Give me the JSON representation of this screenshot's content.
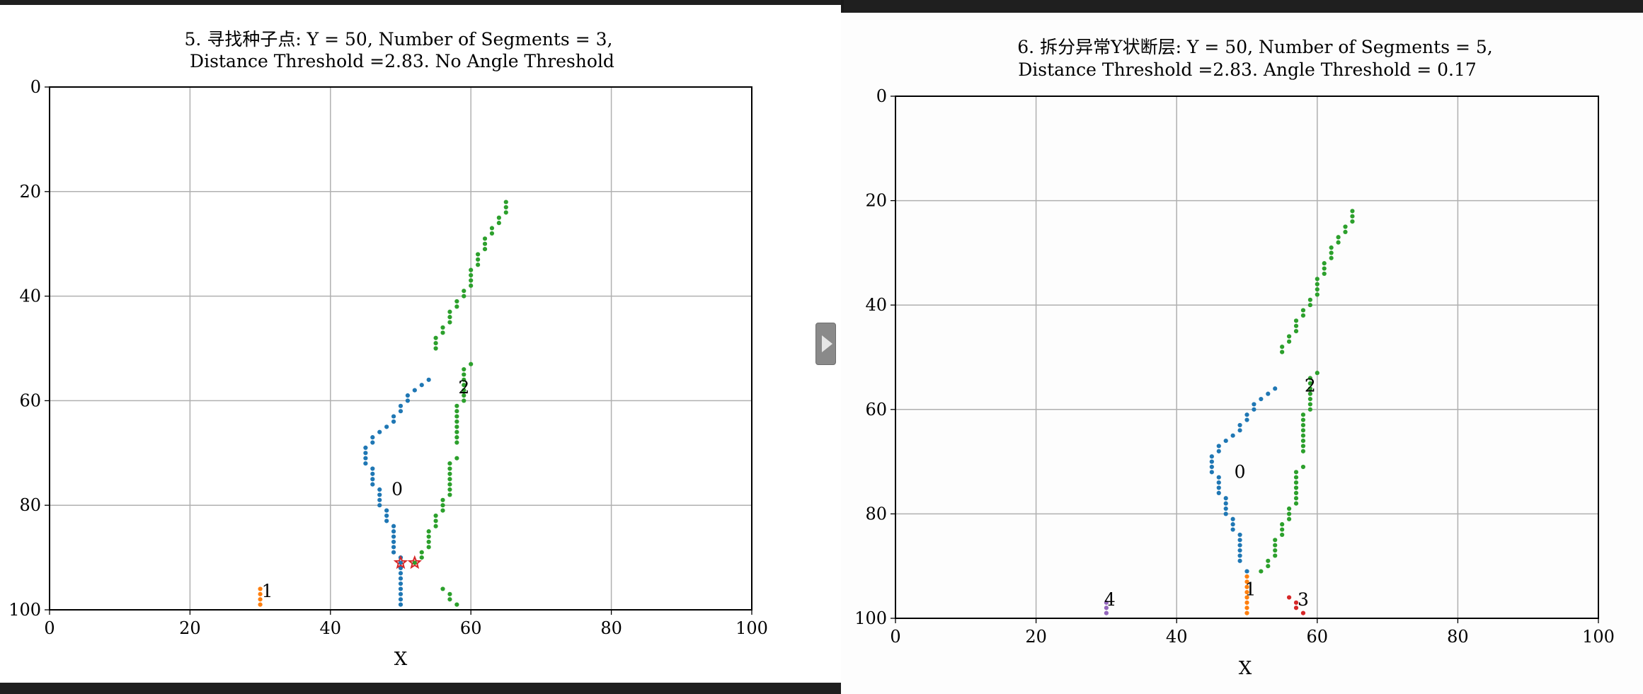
{
  "splitter": {
    "icon": "play-arrow-icon"
  },
  "colors": {
    "seg0": "#1f77b4",
    "seg1": "#ff7f0e",
    "seg2": "#2ca02c",
    "seg3": "#d62728",
    "seg4": "#9467bd",
    "seed": "#d62728",
    "grid": "#b0b0b0"
  },
  "chart_data": [
    {
      "type": "scatter",
      "title_line1": "5. 寻找种子点: Y = 50, Number of Segments = 3,",
      "title_line2": "Distance Threshold =2.83. No Angle Threshold",
      "xlabel": "X",
      "ylabel": "",
      "xlim": [
        0,
        100
      ],
      "ylim": [
        100,
        0
      ],
      "y_inverted": true,
      "grid": true,
      "xticks": [
        "0",
        "20",
        "40",
        "60",
        "80",
        "100"
      ],
      "yticks": [
        "0",
        "20",
        "40",
        "60",
        "80",
        "100"
      ],
      "segment_labels": [
        {
          "text": "0",
          "x": 49.5,
          "y": 77
        },
        {
          "text": "1",
          "x": 31,
          "y": 96.5
        },
        {
          "text": "2",
          "x": 59,
          "y": 57.5
        }
      ],
      "seed_points": [
        [
          50,
          91
        ],
        [
          52,
          91
        ]
      ],
      "series": [
        {
          "color_key": "seg0",
          "points": [
            [
              54,
              56
            ],
            [
              53,
              57
            ],
            [
              52,
              58
            ],
            [
              51,
              59
            ],
            [
              51,
              60
            ],
            [
              50,
              61
            ],
            [
              50,
              62
            ],
            [
              49,
              63
            ],
            [
              49,
              64
            ],
            [
              48,
              65
            ],
            [
              47,
              66
            ],
            [
              46,
              67
            ],
            [
              46,
              68
            ],
            [
              45,
              69
            ],
            [
              45,
              70
            ],
            [
              45,
              71
            ],
            [
              45,
              72
            ],
            [
              46,
              73
            ],
            [
              46,
              74
            ],
            [
              46,
              75
            ],
            [
              46,
              76
            ],
            [
              47,
              77
            ],
            [
              47,
              78
            ],
            [
              47,
              79
            ],
            [
              47,
              80
            ],
            [
              48,
              81
            ],
            [
              48,
              82
            ],
            [
              48,
              83
            ],
            [
              49,
              84
            ],
            [
              49,
              85
            ],
            [
              49,
              86
            ],
            [
              49,
              87
            ],
            [
              49,
              88
            ],
            [
              49,
              89
            ],
            [
              50,
              90
            ],
            [
              50,
              91
            ],
            [
              50,
              92
            ],
            [
              50,
              93
            ],
            [
              50,
              94
            ],
            [
              50,
              95
            ],
            [
              50,
              96
            ],
            [
              50,
              97
            ],
            [
              50,
              98
            ],
            [
              50,
              99
            ]
          ]
        },
        {
          "color_key": "seg1",
          "points": [
            [
              30,
              96
            ],
            [
              30,
              97
            ],
            [
              30,
              98
            ],
            [
              30,
              99
            ]
          ]
        },
        {
          "color_key": "seg2",
          "points": [
            [
              65,
              22
            ],
            [
              65,
              23
            ],
            [
              65,
              24
            ],
            [
              64,
              25
            ],
            [
              64,
              26
            ],
            [
              63,
              27
            ],
            [
              63,
              28
            ],
            [
              62,
              29
            ],
            [
              62,
              30
            ],
            [
              62,
              31
            ],
            [
              61,
              32
            ],
            [
              61,
              33
            ],
            [
              61,
              34
            ],
            [
              60,
              35
            ],
            [
              60,
              36
            ],
            [
              60,
              37
            ],
            [
              60,
              38
            ],
            [
              59,
              39
            ],
            [
              59,
              40
            ],
            [
              58,
              41
            ],
            [
              58,
              42
            ],
            [
              57,
              43
            ],
            [
              57,
              44
            ],
            [
              57,
              45
            ],
            [
              56,
              46
            ],
            [
              56,
              47
            ],
            [
              55,
              48
            ],
            [
              55,
              49
            ],
            [
              55,
              50
            ],
            [
              60,
              53
            ],
            [
              59,
              54
            ],
            [
              59,
              55
            ],
            [
              59,
              56
            ],
            [
              59,
              57
            ],
            [
              59,
              58
            ],
            [
              59,
              59
            ],
            [
              59,
              60
            ],
            [
              58,
              61
            ],
            [
              58,
              62
            ],
            [
              58,
              63
            ],
            [
              58,
              64
            ],
            [
              58,
              65
            ],
            [
              58,
              66
            ],
            [
              58,
              67
            ],
            [
              58,
              68
            ],
            [
              58,
              71
            ],
            [
              57,
              72
            ],
            [
              57,
              73
            ],
            [
              57,
              74
            ],
            [
              57,
              75
            ],
            [
              57,
              76
            ],
            [
              57,
              77
            ],
            [
              57,
              78
            ],
            [
              56,
              79
            ],
            [
              56,
              80
            ],
            [
              56,
              81
            ],
            [
              55,
              82
            ],
            [
              55,
              83
            ],
            [
              55,
              84
            ],
            [
              54,
              85
            ],
            [
              54,
              86
            ],
            [
              54,
              87
            ],
            [
              54,
              88
            ],
            [
              53,
              89
            ],
            [
              53,
              90
            ],
            [
              52,
              91
            ],
            [
              56,
              96
            ],
            [
              57,
              97
            ],
            [
              57,
              98
            ],
            [
              58,
              99
            ]
          ]
        }
      ]
    },
    {
      "type": "scatter",
      "title_line1": "6. 拆分异常Y状断层: Y = 50, Number of Segments = 5,",
      "title_line2": "Distance Threshold =2.83. Angle Threshold = 0.17",
      "xlabel": "X",
      "ylabel": "",
      "xlim": [
        0,
        100
      ],
      "ylim": [
        100,
        0
      ],
      "y_inverted": true,
      "grid": true,
      "xticks": [
        "0",
        "20",
        "40",
        "60",
        "80",
        "100"
      ],
      "yticks": [
        "0",
        "20",
        "40",
        "60",
        "80",
        "100"
      ],
      "segment_labels": [
        {
          "text": "0",
          "x": 49,
          "y": 72
        },
        {
          "text": "1",
          "x": 50.5,
          "y": 94.5
        },
        {
          "text": "2",
          "x": 59,
          "y": 55.5
        },
        {
          "text": "3",
          "x": 58,
          "y": 96.5
        },
        {
          "text": "4",
          "x": 30.5,
          "y": 96.5
        }
      ],
      "seed_points": [],
      "series": [
        {
          "color_key": "seg0",
          "points": [
            [
              54,
              56
            ],
            [
              53,
              57
            ],
            [
              52,
              58
            ],
            [
              51,
              59
            ],
            [
              51,
              60
            ],
            [
              50,
              61
            ],
            [
              50,
              62
            ],
            [
              49,
              63
            ],
            [
              49,
              64
            ],
            [
              48,
              65
            ],
            [
              47,
              66
            ],
            [
              46,
              67
            ],
            [
              46,
              68
            ],
            [
              45,
              69
            ],
            [
              45,
              70
            ],
            [
              45,
              71
            ],
            [
              45,
              72
            ],
            [
              46,
              73
            ],
            [
              46,
              74
            ],
            [
              46,
              75
            ],
            [
              46,
              76
            ],
            [
              47,
              77
            ],
            [
              47,
              78
            ],
            [
              47,
              79
            ],
            [
              47,
              80
            ],
            [
              48,
              81
            ],
            [
              48,
              82
            ],
            [
              48,
              83
            ],
            [
              49,
              84
            ],
            [
              49,
              85
            ],
            [
              49,
              86
            ],
            [
              49,
              87
            ],
            [
              49,
              88
            ],
            [
              49,
              89
            ],
            [
              50,
              91
            ]
          ]
        },
        {
          "color_key": "seg1",
          "points": [
            [
              50,
              92
            ],
            [
              50,
              93
            ],
            [
              50,
              94
            ],
            [
              50,
              95
            ],
            [
              50,
              96
            ],
            [
              50,
              97
            ],
            [
              50,
              98
            ],
            [
              50,
              99
            ]
          ]
        },
        {
          "color_key": "seg2",
          "points": [
            [
              65,
              22
            ],
            [
              65,
              23
            ],
            [
              65,
              24
            ],
            [
              64,
              25
            ],
            [
              64,
              26
            ],
            [
              63,
              27
            ],
            [
              63,
              28
            ],
            [
              62,
              29
            ],
            [
              62,
              30
            ],
            [
              62,
              31
            ],
            [
              61,
              32
            ],
            [
              61,
              33
            ],
            [
              61,
              34
            ],
            [
              60,
              35
            ],
            [
              60,
              36
            ],
            [
              60,
              37
            ],
            [
              60,
              38
            ],
            [
              59,
              39
            ],
            [
              59,
              40
            ],
            [
              58,
              41
            ],
            [
              58,
              42
            ],
            [
              57,
              43
            ],
            [
              57,
              44
            ],
            [
              57,
              45
            ],
            [
              56,
              46
            ],
            [
              56,
              47
            ],
            [
              55,
              48
            ],
            [
              55,
              49
            ],
            [
              60,
              53
            ],
            [
              59,
              54
            ],
            [
              59,
              55
            ],
            [
              59,
              56
            ],
            [
              59,
              57
            ],
            [
              59,
              58
            ],
            [
              59,
              59
            ],
            [
              59,
              60
            ],
            [
              58,
              61
            ],
            [
              58,
              62
            ],
            [
              58,
              63
            ],
            [
              58,
              64
            ],
            [
              58,
              65
            ],
            [
              58,
              66
            ],
            [
              58,
              67
            ],
            [
              58,
              68
            ],
            [
              58,
              71
            ],
            [
              57,
              72
            ],
            [
              57,
              73
            ],
            [
              57,
              74
            ],
            [
              57,
              75
            ],
            [
              57,
              76
            ],
            [
              57,
              77
            ],
            [
              57,
              78
            ],
            [
              56,
              79
            ],
            [
              56,
              80
            ],
            [
              56,
              81
            ],
            [
              55,
              82
            ],
            [
              55,
              83
            ],
            [
              55,
              84
            ],
            [
              54,
              85
            ],
            [
              54,
              86
            ],
            [
              54,
              87
            ],
            [
              54,
              88
            ],
            [
              53,
              89
            ],
            [
              53,
              90
            ],
            [
              52,
              91
            ]
          ]
        },
        {
          "color_key": "seg3",
          "points": [
            [
              56,
              96
            ],
            [
              57,
              97
            ],
            [
              57,
              98
            ],
            [
              58,
              99
            ]
          ]
        },
        {
          "color_key": "seg4",
          "points": [
            [
              30,
              97
            ],
            [
              30,
              98
            ],
            [
              30,
              99
            ]
          ]
        }
      ]
    }
  ]
}
